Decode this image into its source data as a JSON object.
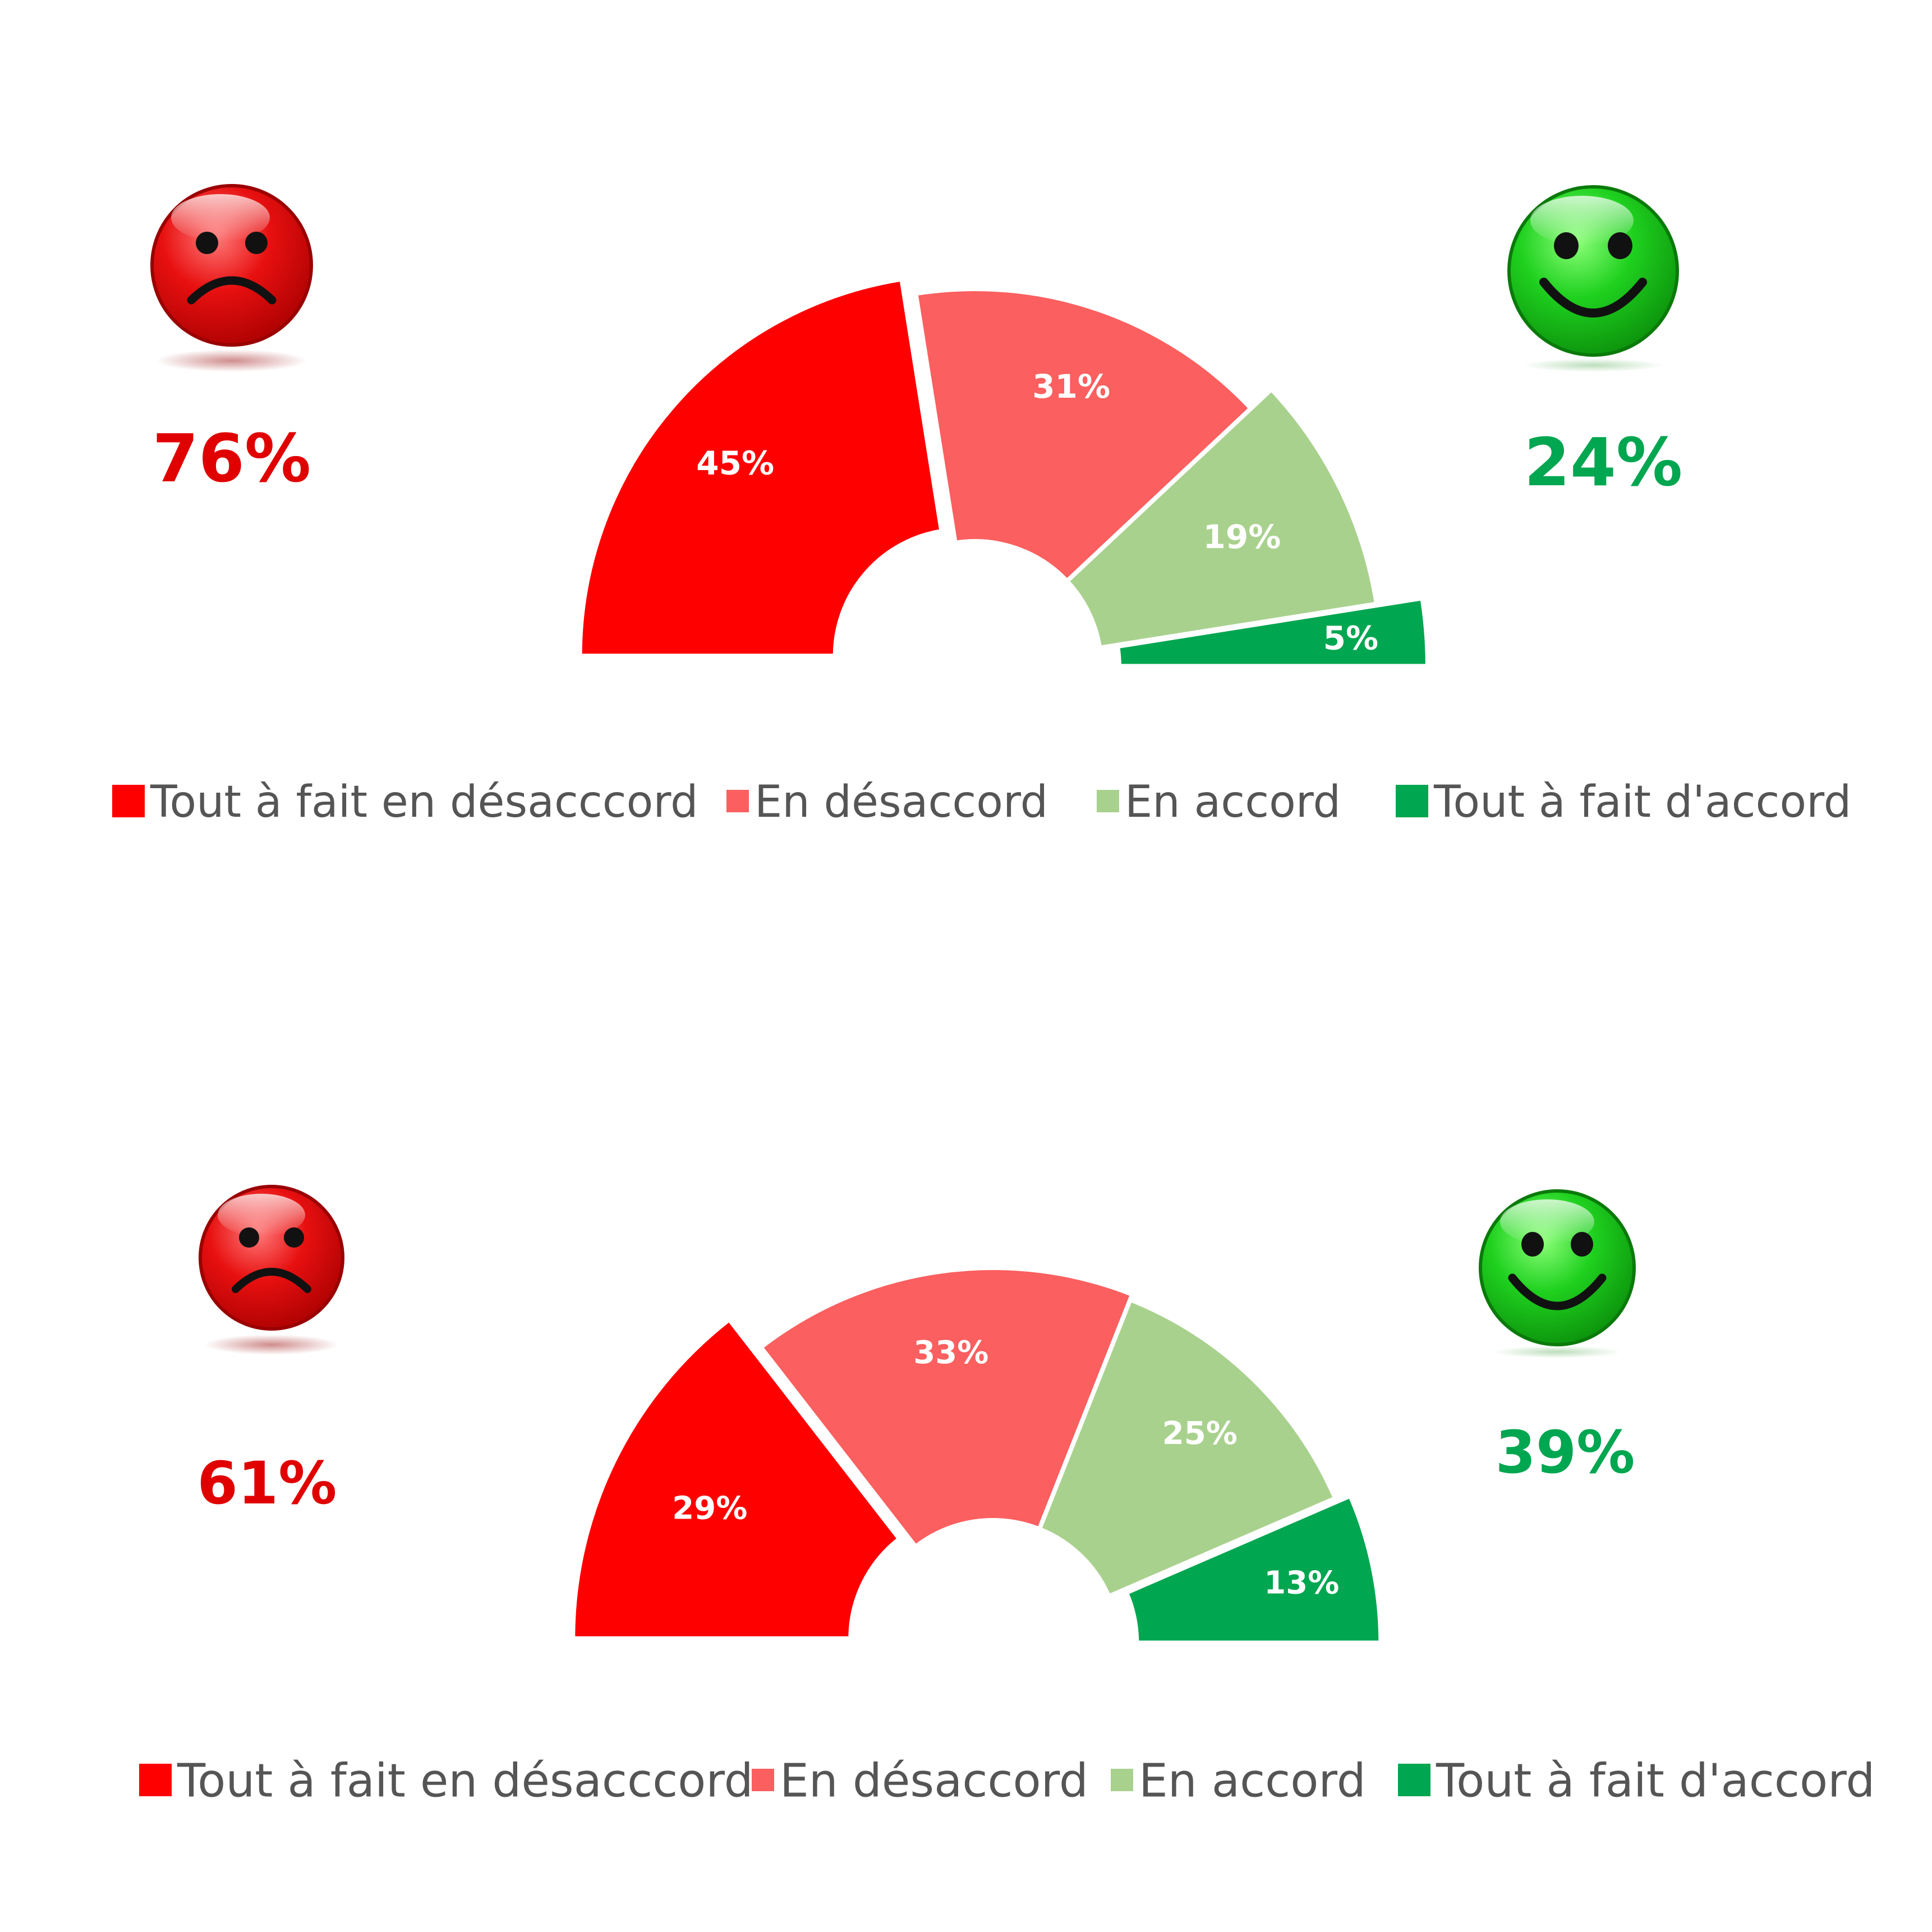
{
  "colors": {
    "strongly_disagree": "#ff0000",
    "disagree": "#fb5f5f",
    "agree": "#a9d18e",
    "strongly_agree": "#00a650",
    "negative_text": "#e00000",
    "positive_text": "#00a650"
  },
  "icons": {
    "negative": "sad-face-icon",
    "positive": "happy-face-icon"
  },
  "chart_data": [
    {
      "type": "pie",
      "variant": "half-donut",
      "categories": [
        "Tout à fait en désacccord",
        "En désaccord",
        "En accord",
        "Tout à fait d'accord"
      ],
      "values": [
        45,
        31,
        19,
        5
      ],
      "labels": [
        "45%",
        "31%",
        "19%",
        "5%"
      ],
      "exploded": [
        true,
        false,
        false,
        true
      ],
      "negative_total": "76%",
      "positive_total": "24%",
      "legend": "bottom"
    },
    {
      "type": "pie",
      "variant": "half-donut",
      "categories": [
        "Tout à fait en désacccord",
        "En désaccord",
        "En accord",
        "Tout à fait d'accord"
      ],
      "values": [
        29,
        33,
        25,
        13
      ],
      "labels": [
        "29%",
        "33%",
        "25%",
        "13%"
      ],
      "exploded": [
        true,
        false,
        false,
        true
      ],
      "negative_total": "61%",
      "positive_total": "39%",
      "legend": "bottom"
    }
  ]
}
